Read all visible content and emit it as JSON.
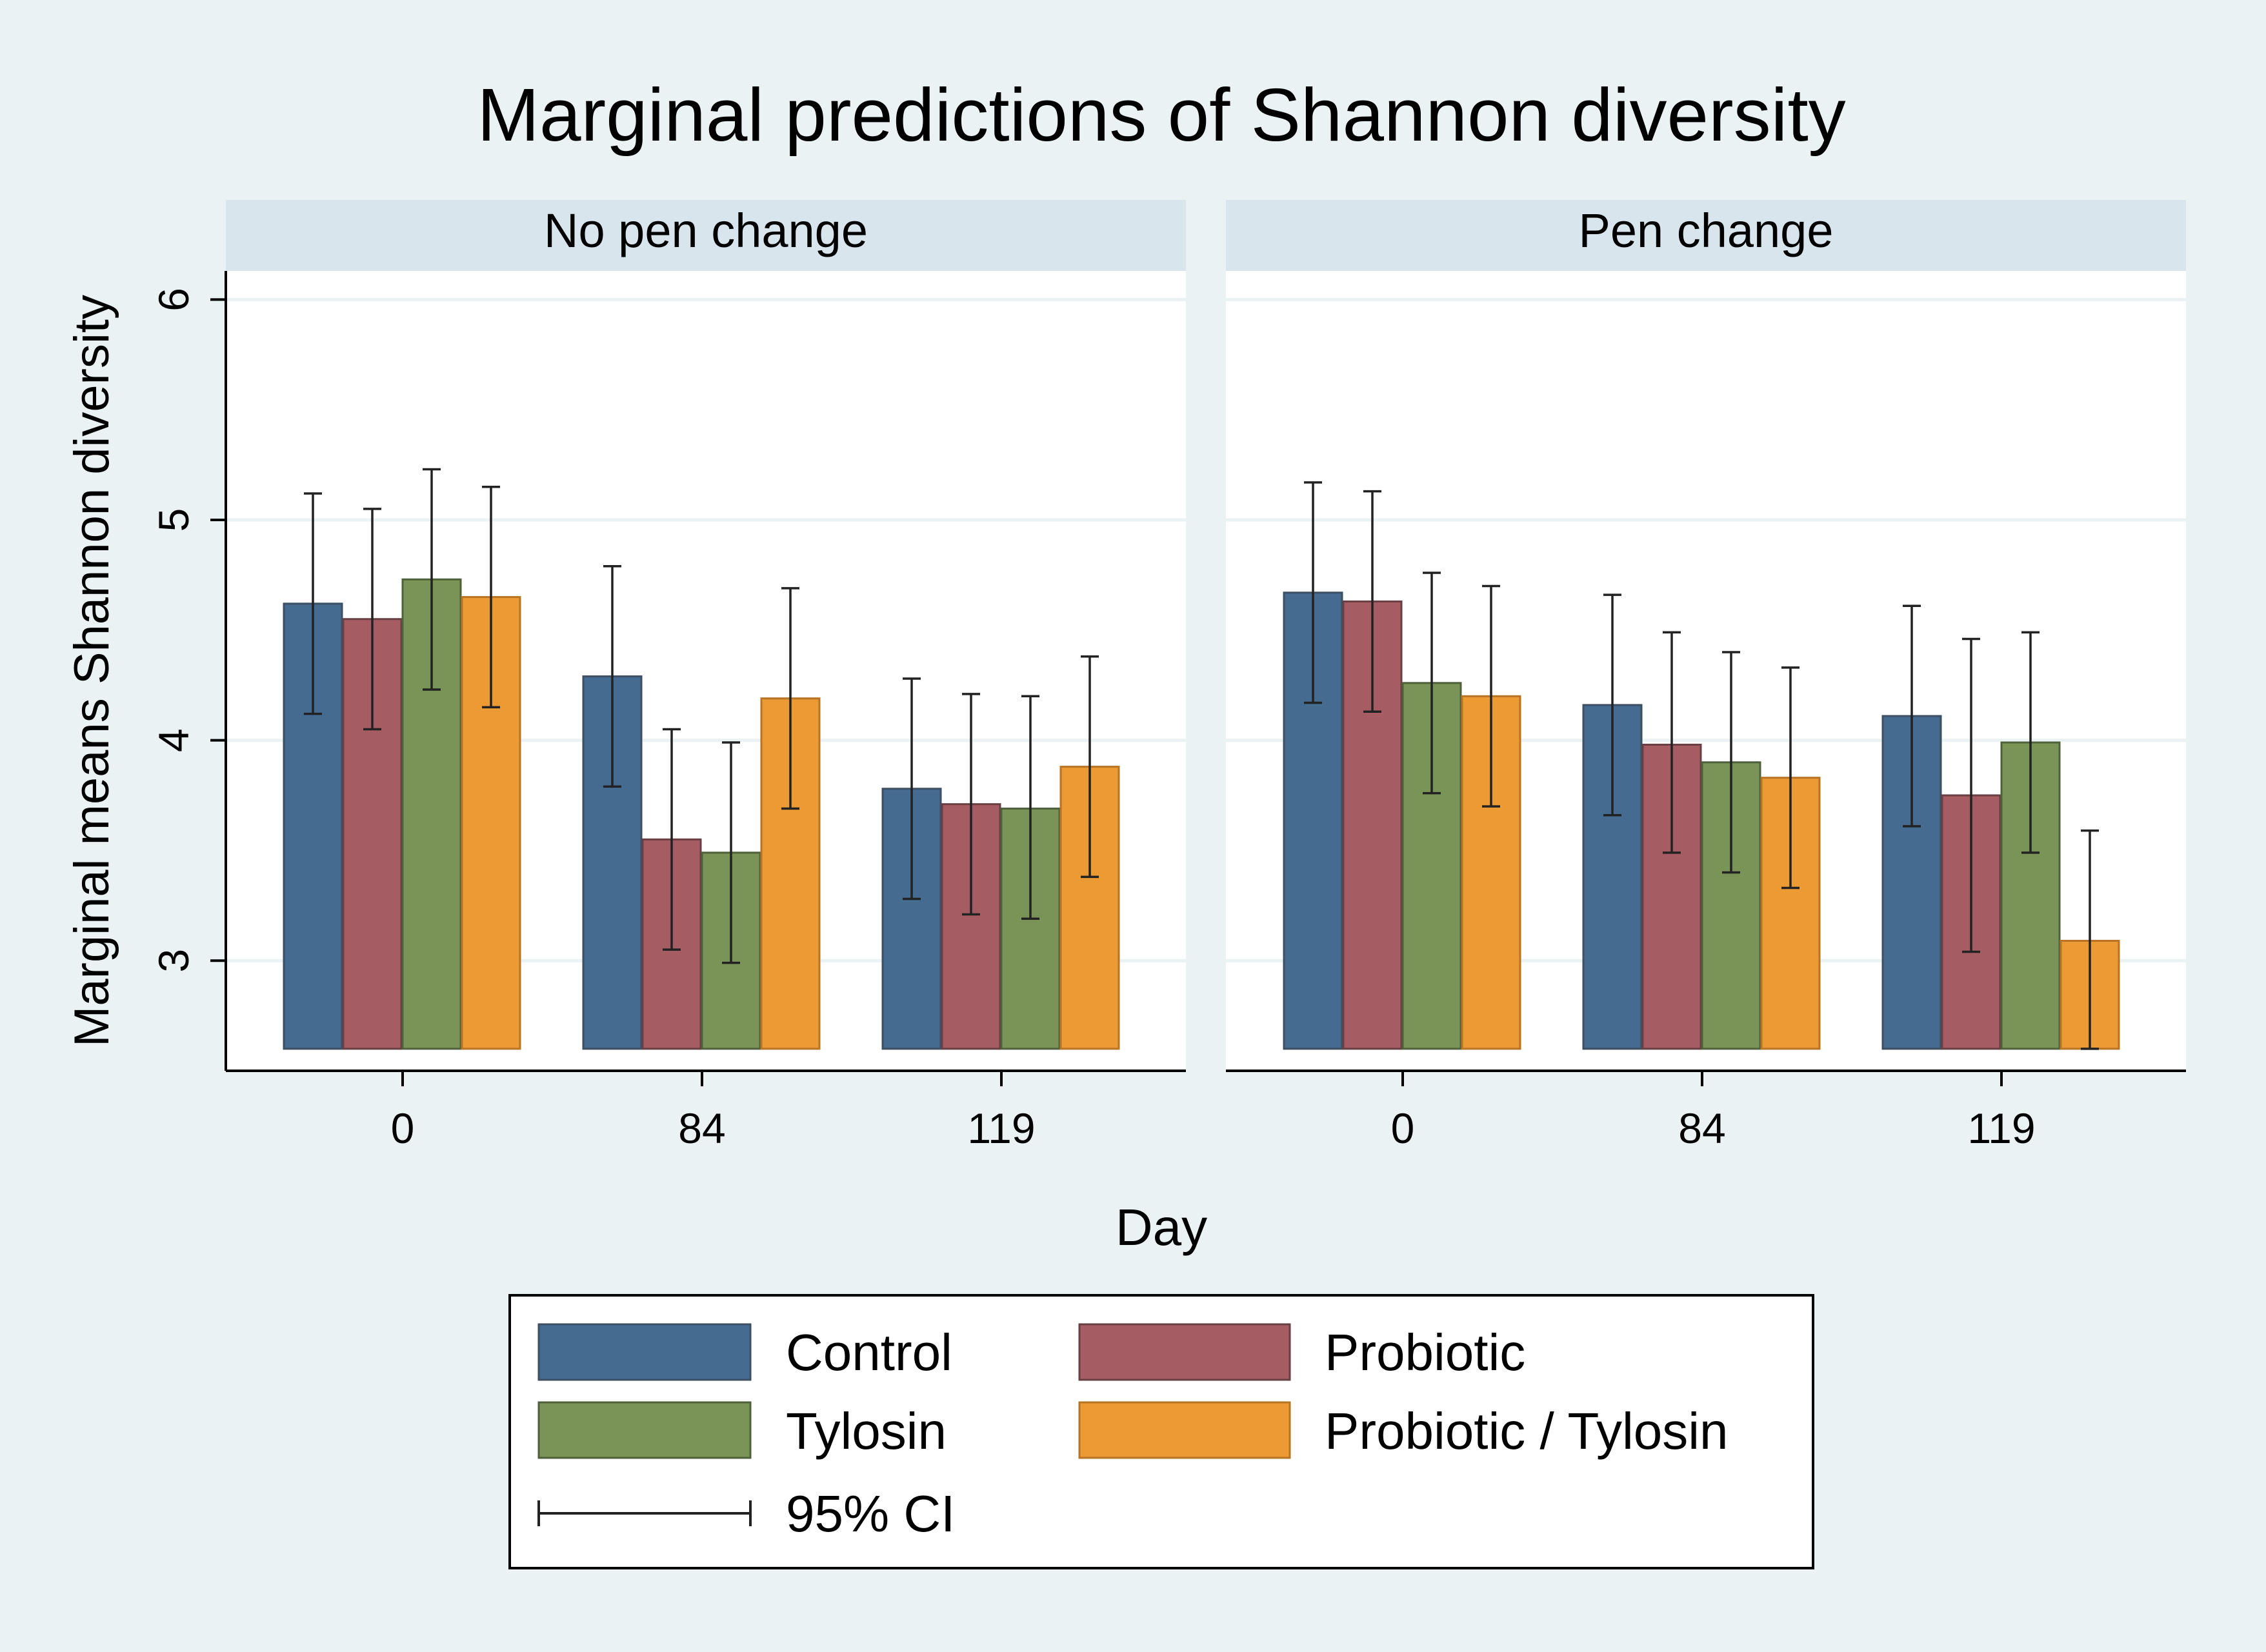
{
  "chart_data": {
    "type": "bar",
    "title": "Marginal predictions of Shannon diversity",
    "xlabel": "Day",
    "ylabel": "Marginal means Shannon diversity",
    "ylim": [
      2.5,
      6.13
    ],
    "bar_base": 2.6,
    "yticks": [
      3,
      4,
      5,
      6
    ],
    "ytick_labels": [
      "3",
      "4",
      "5",
      "6"
    ],
    "grid": true,
    "categories": [
      "0",
      "84",
      "119"
    ],
    "series": [
      {
        "name": "Control",
        "color": "#466b91"
      },
      {
        "name": "Probiotic",
        "color": "#a55c62"
      },
      {
        "name": "Tylosin",
        "color": "#7a9457"
      },
      {
        "name": "Probiotic / Tylosin",
        "color": "#eb9a34"
      }
    ],
    "panels": [
      {
        "title": "No pen change",
        "values": [
          [
            4.62,
            4.55,
            4.73,
            4.65
          ],
          [
            4.29,
            3.55,
            3.49,
            4.19
          ],
          [
            3.78,
            3.71,
            3.69,
            3.88
          ]
        ],
        "ci_low": [
          [
            4.12,
            4.05,
            4.23,
            4.15
          ],
          [
            3.79,
            3.05,
            2.99,
            3.69
          ],
          [
            3.28,
            3.21,
            3.19,
            3.38
          ]
        ],
        "ci_high": [
          [
            5.12,
            5.05,
            5.23,
            5.15
          ],
          [
            4.79,
            4.05,
            3.99,
            4.69
          ],
          [
            4.28,
            4.21,
            4.2,
            4.38
          ]
        ]
      },
      {
        "title": "Pen change",
        "values": [
          [
            4.67,
            4.63,
            4.26,
            4.2
          ],
          [
            4.16,
            3.98,
            3.9,
            3.83
          ],
          [
            4.11,
            3.75,
            3.99,
            3.09
          ]
        ],
        "ci_low": [
          [
            4.17,
            4.13,
            3.76,
            3.7
          ],
          [
            3.66,
            3.49,
            3.4,
            3.33
          ],
          [
            3.61,
            3.04,
            3.49,
            2.6
          ]
        ],
        "ci_high": [
          [
            5.17,
            5.13,
            4.76,
            4.7
          ],
          [
            4.66,
            4.49,
            4.4,
            4.33
          ],
          [
            4.61,
            4.46,
            4.49,
            3.59
          ]
        ]
      }
    ],
    "legend": {
      "position": "bottom",
      "ci_label": "95% CI"
    },
    "colors": {
      "background": "#eaf2f3",
      "plot": "#ffffff",
      "strip": "#d9e5ec",
      "grid": "#eaf2f3",
      "border": "#000000"
    }
  }
}
